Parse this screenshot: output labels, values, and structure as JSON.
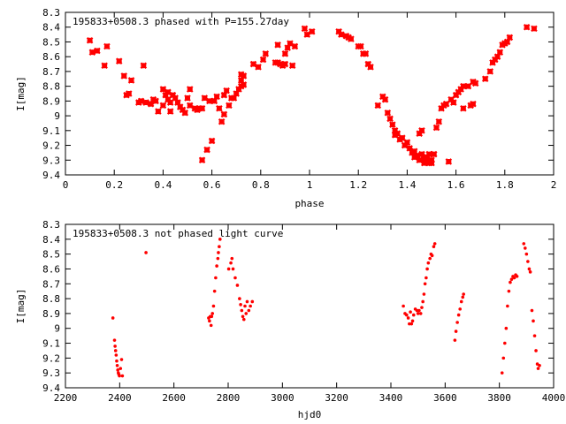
{
  "chart_data": [
    {
      "type": "scatter",
      "title": "195833+0508.3 phased with P=155.27day",
      "xlabel": "phase",
      "ylabel": "I[mag]",
      "xlim": [
        0,
        2
      ],
      "ylim": [
        8.3,
        9.4
      ],
      "y_inverted": true,
      "x_ticks": [
        "0",
        "0.2",
        "0.4",
        "0.6",
        "0.8",
        "1",
        "1.2",
        "1.4",
        "1.6",
        "1.8",
        "2"
      ],
      "y_ticks": [
        "8.3",
        "8.4",
        "8.5",
        "8.6",
        "8.7",
        "8.8",
        "8.9",
        "9",
        "9.1",
        "9.2",
        "9.3",
        "9.4"
      ],
      "marker": "star",
      "color": "#ff0000",
      "points": [
        [
          0.1,
          8.49
        ],
        [
          0.11,
          8.57
        ],
        [
          0.13,
          8.56
        ],
        [
          0.16,
          8.66
        ],
        [
          0.17,
          8.53
        ],
        [
          0.22,
          8.63
        ],
        [
          0.24,
          8.73
        ],
        [
          0.25,
          8.86
        ],
        [
          0.26,
          8.85
        ],
        [
          0.27,
          8.76
        ],
        [
          0.3,
          8.91
        ],
        [
          0.31,
          8.9
        ],
        [
          0.32,
          8.66
        ],
        [
          0.33,
          8.91
        ],
        [
          0.35,
          8.92
        ],
        [
          0.36,
          8.89
        ],
        [
          0.37,
          8.9
        ],
        [
          0.38,
          8.97
        ],
        [
          0.4,
          8.93
        ],
        [
          0.4,
          8.82
        ],
        [
          0.41,
          8.86
        ],
        [
          0.42,
          8.84
        ],
        [
          0.42,
          8.89
        ],
        [
          0.43,
          8.91
        ],
        [
          0.43,
          8.97
        ],
        [
          0.44,
          8.86
        ],
        [
          0.45,
          8.88
        ],
        [
          0.46,
          8.91
        ],
        [
          0.47,
          8.94
        ],
        [
          0.48,
          8.96
        ],
        [
          0.49,
          8.98
        ],
        [
          0.5,
          8.88
        ],
        [
          0.51,
          8.93
        ],
        [
          0.51,
          8.82
        ],
        [
          0.53,
          8.95
        ],
        [
          0.54,
          8.96
        ],
        [
          0.55,
          8.95
        ],
        [
          0.56,
          8.95
        ],
        [
          0.56,
          9.3
        ],
        [
          0.57,
          8.88
        ],
        [
          0.58,
          9.23
        ],
        [
          0.59,
          8.9
        ],
        [
          0.6,
          9.17
        ],
        [
          0.61,
          8.9
        ],
        [
          0.62,
          8.87
        ],
        [
          0.63,
          8.95
        ],
        [
          0.64,
          9.04
        ],
        [
          0.65,
          8.99
        ],
        [
          0.65,
          8.86
        ],
        [
          0.66,
          8.83
        ],
        [
          0.67,
          8.93
        ],
        [
          0.68,
          8.88
        ],
        [
          0.69,
          8.88
        ],
        [
          0.7,
          8.85
        ],
        [
          0.71,
          8.82
        ],
        [
          0.72,
          8.72
        ],
        [
          0.72,
          8.76
        ],
        [
          0.72,
          8.8
        ],
        [
          0.73,
          8.79
        ],
        [
          0.73,
          8.73
        ],
        [
          0.77,
          8.65
        ],
        [
          0.79,
          8.67
        ],
        [
          0.81,
          8.62
        ],
        [
          0.82,
          8.58
        ],
        [
          0.86,
          8.64
        ],
        [
          0.87,
          8.64
        ],
        [
          0.87,
          8.52
        ],
        [
          0.88,
          8.65
        ],
        [
          0.89,
          8.66
        ],
        [
          0.9,
          8.58
        ],
        [
          0.9,
          8.65
        ],
        [
          0.91,
          8.54
        ],
        [
          0.92,
          8.51
        ],
        [
          0.93,
          8.66
        ],
        [
          0.94,
          8.53
        ],
        [
          0.98,
          8.41
        ],
        [
          0.99,
          8.45
        ],
        [
          1.01,
          8.43
        ],
        [
          1.12,
          8.43
        ],
        [
          1.13,
          8.45
        ],
        [
          1.15,
          8.46
        ],
        [
          1.16,
          8.47
        ],
        [
          1.17,
          8.48
        ],
        [
          1.2,
          8.53
        ],
        [
          1.21,
          8.53
        ],
        [
          1.22,
          8.58
        ],
        [
          1.23,
          8.58
        ],
        [
          1.24,
          8.65
        ],
        [
          1.25,
          8.67
        ],
        [
          1.28,
          8.93
        ],
        [
          1.3,
          8.87
        ],
        [
          1.31,
          8.89
        ],
        [
          1.32,
          8.98
        ],
        [
          1.33,
          9.02
        ],
        [
          1.34,
          9.06
        ],
        [
          1.35,
          9.1
        ],
        [
          1.35,
          9.13
        ],
        [
          1.36,
          9.12
        ],
        [
          1.37,
          9.16
        ],
        [
          1.38,
          9.15
        ],
        [
          1.39,
          9.2
        ],
        [
          1.4,
          9.18
        ],
        [
          1.41,
          9.22
        ],
        [
          1.42,
          9.25
        ],
        [
          1.43,
          9.24
        ],
        [
          1.43,
          9.28
        ],
        [
          1.44,
          9.27
        ],
        [
          1.45,
          9.3
        ],
        [
          1.45,
          9.12
        ],
        [
          1.46,
          9.26
        ],
        [
          1.46,
          9.1
        ],
        [
          1.47,
          9.29
        ],
        [
          1.47,
          9.32
        ],
        [
          1.48,
          9.31
        ],
        [
          1.48,
          9.28
        ],
        [
          1.49,
          9.32
        ],
        [
          1.49,
          9.26
        ],
        [
          1.5,
          9.3
        ],
        [
          1.5,
          9.32
        ],
        [
          1.51,
          9.26
        ],
        [
          1.52,
          9.08
        ],
        [
          1.53,
          9.04
        ],
        [
          1.54,
          8.95
        ],
        [
          1.55,
          8.93
        ],
        [
          1.56,
          8.92
        ],
        [
          1.57,
          9.31
        ],
        [
          1.58,
          8.89
        ],
        [
          1.59,
          8.91
        ],
        [
          1.6,
          8.86
        ],
        [
          1.61,
          8.84
        ],
        [
          1.62,
          8.82
        ],
        [
          1.63,
          8.95
        ],
        [
          1.63,
          8.8
        ],
        [
          1.65,
          8.8
        ],
        [
          1.66,
          8.93
        ],
        [
          1.67,
          8.77
        ],
        [
          1.67,
          8.92
        ],
        [
          1.68,
          8.78
        ],
        [
          1.72,
          8.75
        ],
        [
          1.74,
          8.7
        ],
        [
          1.75,
          8.64
        ],
        [
          1.76,
          8.62
        ],
        [
          1.77,
          8.6
        ],
        [
          1.78,
          8.57
        ],
        [
          1.79,
          8.52
        ],
        [
          1.8,
          8.51
        ],
        [
          1.81,
          8.5
        ],
        [
          1.82,
          8.47
        ],
        [
          1.89,
          8.4
        ],
        [
          1.92,
          8.41
        ]
      ]
    },
    {
      "type": "scatter",
      "title": "195833+0508.3 not phased light curve",
      "xlabel": "hjd0",
      "ylabel": "I[mag]",
      "xlim": [
        2200,
        4000
      ],
      "ylim": [
        8.3,
        9.4
      ],
      "y_inverted": true,
      "x_ticks": [
        "2200",
        "2400",
        "2600",
        "2800",
        "3000",
        "3200",
        "3400",
        "3600",
        "3800",
        "4000"
      ],
      "y_ticks": [
        "8.3",
        "8.4",
        "8.5",
        "8.6",
        "8.7",
        "8.8",
        "8.9",
        "9",
        "9.1",
        "9.2",
        "9.3",
        "9.4"
      ],
      "marker": "dot",
      "color": "#ff0000",
      "points": [
        [
          2375,
          8.93
        ],
        [
          2381,
          9.08
        ],
        [
          2383,
          9.12
        ],
        [
          2385,
          9.15
        ],
        [
          2387,
          9.18
        ],
        [
          2389,
          9.22
        ],
        [
          2391,
          9.25
        ],
        [
          2393,
          9.28
        ],
        [
          2395,
          9.3
        ],
        [
          2397,
          9.31
        ],
        [
          2399,
          9.32
        ],
        [
          2403,
          9.27
        ],
        [
          2407,
          9.21
        ],
        [
          2410,
          9.32
        ],
        [
          2497,
          8.49
        ],
        [
          2728,
          8.93
        ],
        [
          2731,
          8.95
        ],
        [
          2734,
          8.92
        ],
        [
          2737,
          8.98
        ],
        [
          2739,
          8.92
        ],
        [
          2742,
          8.9
        ],
        [
          2746,
          8.85
        ],
        [
          2750,
          8.75
        ],
        [
          2754,
          8.66
        ],
        [
          2758,
          8.58
        ],
        [
          2762,
          8.53
        ],
        [
          2764,
          8.49
        ],
        [
          2767,
          8.45
        ],
        [
          2770,
          8.4
        ],
        [
          2802,
          8.6
        ],
        [
          2810,
          8.56
        ],
        [
          2814,
          8.53
        ],
        [
          2818,
          8.6
        ],
        [
          2826,
          8.66
        ],
        [
          2834,
          8.71
        ],
        [
          2842,
          8.8
        ],
        [
          2846,
          8.84
        ],
        [
          2850,
          8.88
        ],
        [
          2854,
          8.92
        ],
        [
          2858,
          8.94
        ],
        [
          2862,
          8.85
        ],
        [
          2866,
          8.9
        ],
        [
          2870,
          8.82
        ],
        [
          2876,
          8.88
        ],
        [
          2882,
          8.85
        ],
        [
          2889,
          8.82
        ],
        [
          3446,
          8.85
        ],
        [
          3452,
          8.9
        ],
        [
          3458,
          8.91
        ],
        [
          3464,
          8.93
        ],
        [
          3468,
          8.97
        ],
        [
          3472,
          8.89
        ],
        [
          3476,
          8.97
        ],
        [
          3480,
          8.95
        ],
        [
          3484,
          8.91
        ],
        [
          3490,
          8.87
        ],
        [
          3496,
          8.88
        ],
        [
          3500,
          8.9
        ],
        [
          3504,
          8.88
        ],
        [
          3510,
          8.9
        ],
        [
          3514,
          8.86
        ],
        [
          3518,
          8.82
        ],
        [
          3522,
          8.77
        ],
        [
          3526,
          8.7
        ],
        [
          3530,
          8.66
        ],
        [
          3534,
          8.6
        ],
        [
          3538,
          8.56
        ],
        [
          3544,
          8.53
        ],
        [
          3548,
          8.5
        ],
        [
          3552,
          8.51
        ],
        [
          3558,
          8.45
        ],
        [
          3562,
          8.43
        ],
        [
          3636,
          9.08
        ],
        [
          3640,
          9.02
        ],
        [
          3645,
          8.96
        ],
        [
          3650,
          8.91
        ],
        [
          3655,
          8.87
        ],
        [
          3660,
          8.82
        ],
        [
          3665,
          8.79
        ],
        [
          3668,
          8.77
        ],
        [
          3810,
          9.3
        ],
        [
          3815,
          9.2
        ],
        [
          3820,
          9.1
        ],
        [
          3825,
          9.0
        ],
        [
          3830,
          8.85
        ],
        [
          3835,
          8.75
        ],
        [
          3840,
          8.69
        ],
        [
          3845,
          8.67
        ],
        [
          3850,
          8.65
        ],
        [
          3855,
          8.66
        ],
        [
          3860,
          8.64
        ],
        [
          3865,
          8.65
        ],
        [
          3890,
          8.43
        ],
        [
          3895,
          8.46
        ],
        [
          3900,
          8.5
        ],
        [
          3905,
          8.55
        ],
        [
          3910,
          8.6
        ],
        [
          3914,
          8.62
        ],
        [
          3920,
          8.88
        ],
        [
          3925,
          8.95
        ],
        [
          3930,
          9.05
        ],
        [
          3935,
          9.15
        ],
        [
          3940,
          9.24
        ],
        [
          3943,
          9.27
        ],
        [
          3948,
          9.25
        ]
      ]
    }
  ]
}
